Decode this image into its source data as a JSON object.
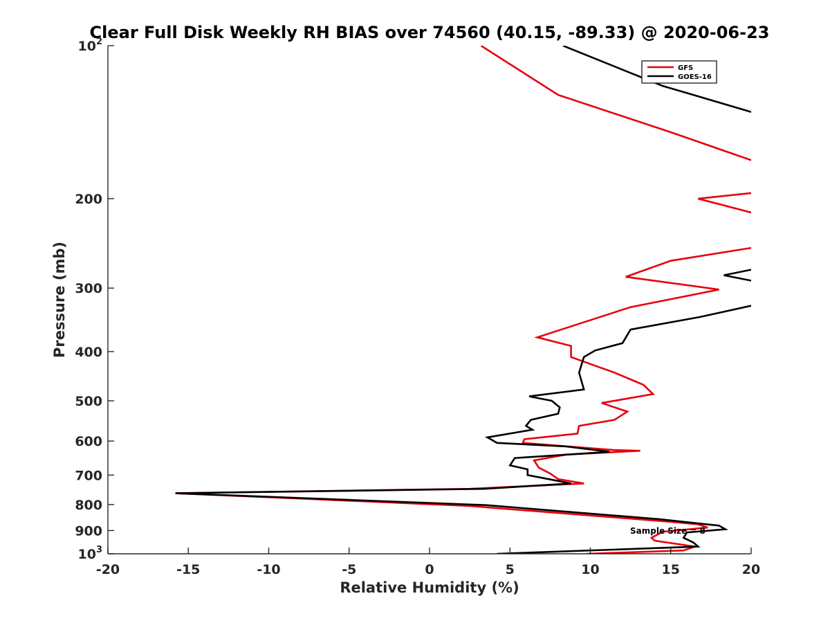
{
  "chart_data": {
    "type": "line",
    "title": "Clear Full Disk Weekly RH BIAS over 74560 (40.15, -89.33) @ 2020-06-23",
    "xlabel": "Relative Humidity (%)",
    "ylabel": "Pressure (mb)",
    "xlim": [
      -20,
      20
    ],
    "ylim": [
      100,
      1000
    ],
    "yscale": "log",
    "y_reversed": true,
    "grid": false,
    "x_ticks": [
      "-20",
      "-15",
      "-10",
      "-5",
      "0",
      "5",
      "10",
      "15",
      "20"
    ],
    "y_ticks": [
      {
        "value": 100,
        "base": "10",
        "exp": "2"
      },
      {
        "value": 200,
        "base": "200",
        "exp": ""
      },
      {
        "value": 300,
        "base": "300",
        "exp": ""
      },
      {
        "value": 400,
        "base": "400",
        "exp": ""
      },
      {
        "value": 500,
        "base": "500",
        "exp": ""
      },
      {
        "value": 600,
        "base": "600",
        "exp": ""
      },
      {
        "value": 700,
        "base": "700",
        "exp": ""
      },
      {
        "value": 800,
        "base": "800",
        "exp": ""
      },
      {
        "value": 900,
        "base": "900",
        "exp": ""
      },
      {
        "value": 1000,
        "base": "10",
        "exp": "3"
      }
    ],
    "legend_position": "top-right",
    "annotation": "Sample Size = 8",
    "series": [
      {
        "name": "GFS",
        "color": "#e8000b",
        "segments": [
          [
            [
              3.2,
              100
            ],
            [
              8,
              125
            ],
            [
              15,
              148
            ],
            [
              20,
              168
            ]
          ],
          [
            [
              20,
              195
            ],
            [
              16.7,
              200
            ],
            [
              20,
              213
            ]
          ],
          [
            [
              20,
              250
            ],
            [
              15,
              265
            ],
            [
              12.2,
              285
            ],
            [
              18,
              302
            ],
            [
              12.5,
              327
            ],
            [
              6.7,
              375
            ],
            [
              8.8,
              390
            ],
            [
              8.8,
              410
            ],
            [
              11.5,
              440
            ],
            [
              13.3,
              465
            ],
            [
              13.9,
              485
            ],
            [
              10.7,
              505
            ],
            [
              12.3,
              525
            ],
            [
              11.5,
              545
            ],
            [
              9.3,
              560
            ],
            [
              9.2,
              580
            ],
            [
              5.9,
              595
            ],
            [
              5.8,
              605
            ],
            [
              11.5,
              625
            ],
            [
              13.1,
              627
            ],
            [
              8.5,
              638
            ],
            [
              6.5,
              655
            ],
            [
              6.8,
              677
            ],
            [
              7.5,
              695
            ],
            [
              8.0,
              713
            ],
            [
              9.6,
              727
            ],
            [
              2.5,
              745
            ],
            [
              -15.8,
              760
            ],
            [
              2.5,
              805
            ],
            [
              15,
              865
            ],
            [
              16.7,
              875
            ],
            [
              17.3,
              888
            ],
            [
              14.5,
              905
            ],
            [
              13.8,
              930
            ],
            [
              14.0,
              942
            ],
            [
              16.5,
              968
            ],
            [
              15.8,
              985
            ],
            [
              9.8,
              1000
            ]
          ]
        ]
      },
      {
        "name": "GOES-16",
        "color": "#000000",
        "segments": [
          [
            [
              8.3,
              100
            ],
            [
              14.5,
              120
            ],
            [
              20,
              135
            ]
          ],
          [
            [
              20,
              276
            ],
            [
              18.3,
              283
            ],
            [
              20,
              290
            ]
          ],
          [
            [
              20,
              325
            ],
            [
              16.8,
              342
            ],
            [
              12.5,
              362
            ],
            [
              12.0,
              385
            ],
            [
              10.3,
              398
            ],
            [
              9.6,
              410
            ],
            [
              9.3,
              440
            ],
            [
              9.6,
              475
            ],
            [
              6.2,
              490
            ],
            [
              7.6,
              500
            ],
            [
              8.1,
              515
            ],
            [
              8.0,
              530
            ],
            [
              6.3,
              545
            ],
            [
              6.0,
              560
            ],
            [
              6.4,
              570
            ],
            [
              3.6,
              590
            ],
            [
              4.2,
              605
            ],
            [
              8.5,
              615
            ],
            [
              11.2,
              630
            ],
            [
              5.3,
              648
            ],
            [
              5.0,
              670
            ],
            [
              6.1,
              682
            ],
            [
              6.1,
              700
            ],
            [
              7.3,
              712
            ],
            [
              8.8,
              727
            ],
            [
              3.4,
              745
            ],
            [
              -15.8,
              760
            ],
            [
              3.5,
              802
            ],
            [
              14.3,
              855
            ],
            [
              18.0,
              880
            ],
            [
              18.4,
              895
            ],
            [
              16.0,
              908
            ],
            [
              15.8,
              930
            ],
            [
              16.4,
              950
            ],
            [
              16.7,
              968
            ],
            [
              4.2,
              1000
            ]
          ]
        ]
      }
    ]
  }
}
